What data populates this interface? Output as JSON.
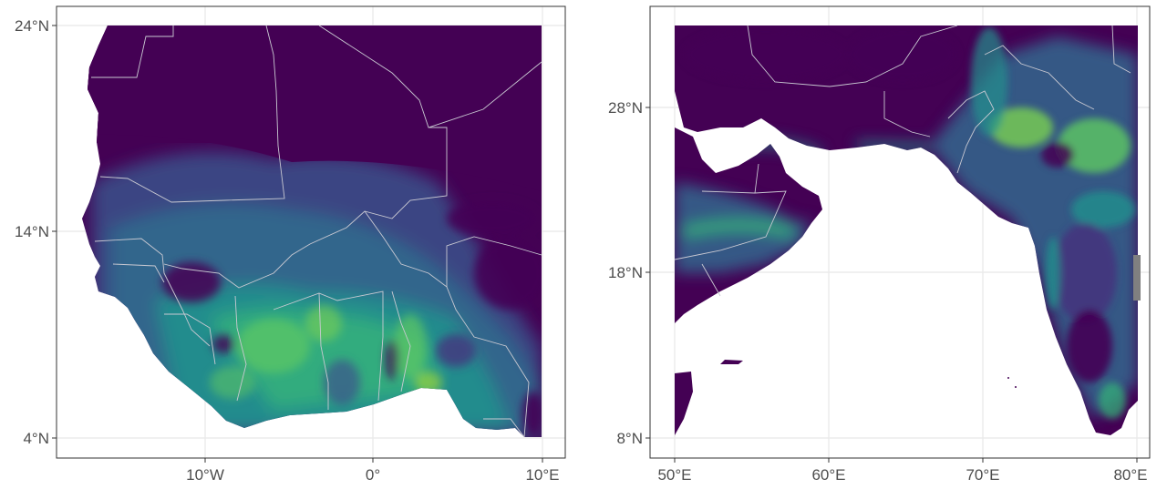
{
  "maps": [
    {
      "id": "west-africa",
      "y_ticks": [
        "24°N",
        "14°N",
        "4°N"
      ],
      "x_ticks": [
        "10°W",
        "0°",
        "10°E"
      ]
    },
    {
      "id": "arabian-sea-india",
      "y_ticks": [
        "28°N",
        "18°N",
        "8°N"
      ],
      "x_ticks": [
        "50°E",
        "60°E",
        "70°E",
        "80°E"
      ]
    }
  ],
  "colors": {
    "low": "#440154",
    "mid": "#31688e",
    "teal": "#21908d",
    "green": "#35b779",
    "high": "#fde725",
    "grid": "#ebebeb",
    "frame": "#333333",
    "border": "#c9c9d2"
  }
}
